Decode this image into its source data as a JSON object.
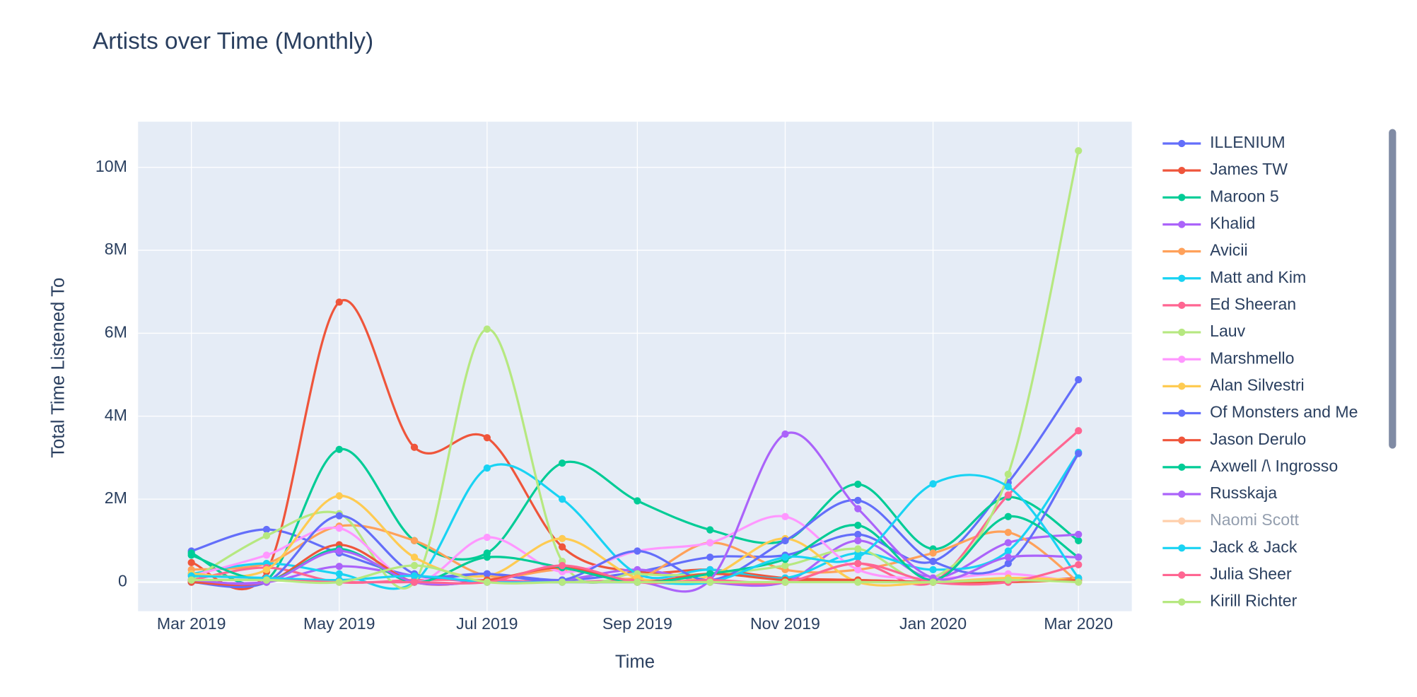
{
  "chart_data": {
    "type": "line",
    "title": "Artists over Time (Monthly)",
    "x_label": "Time",
    "y_label": "Total Time Listened To",
    "x": [
      "2019-03",
      "2019-04",
      "2019-05",
      "2019-06",
      "2019-07",
      "2019-08",
      "2019-09",
      "2019-10",
      "2019-11",
      "2019-12",
      "2020-01",
      "2020-02",
      "2020-03"
    ],
    "xlim": [
      "2019-02-07",
      "2020-03-23"
    ],
    "xticks": [
      {
        "value": "2019-03",
        "label": "Mar 2019"
      },
      {
        "value": "2019-05",
        "label": "May 2019"
      },
      {
        "value": "2019-07",
        "label": "Jul 2019"
      },
      {
        "value": "2019-09",
        "label": "Sep 2019"
      },
      {
        "value": "2019-11",
        "label": "Nov 2019"
      },
      {
        "value": "2020-01",
        "label": "Jan 2020"
      },
      {
        "value": "2020-03",
        "label": "Mar 2020"
      }
    ],
    "ylim": [
      -700000,
      11100000
    ],
    "yticks": [
      {
        "value": 0,
        "label": "0"
      },
      {
        "value": 2000000,
        "label": "2M"
      },
      {
        "value": 4000000,
        "label": "4M"
      },
      {
        "value": 6000000,
        "label": "6M"
      },
      {
        "value": 8000000,
        "label": "8M"
      },
      {
        "value": 10000000,
        "label": "10M"
      }
    ],
    "grid": true,
    "smooth": true,
    "series": [
      {
        "name": "ILLENIUM",
        "color": "#636efa",
        "values": [
          750000,
          1270000,
          700000,
          150000,
          200000,
          50000,
          250000,
          600000,
          650000,
          1150000,
          500000,
          2400000,
          4880000
        ]
      },
      {
        "name": "James TW",
        "color": "#EF553B",
        "values": [
          470000,
          250000,
          6750000,
          3250000,
          3480000,
          850000,
          250000,
          300000,
          100000,
          50000,
          0,
          0,
          100000
        ]
      },
      {
        "name": "Maroon 5",
        "color": "#00cc96",
        "values": [
          700000,
          50000,
          3200000,
          1000000,
          700000,
          2870000,
          1960000,
          1260000,
          1000000,
          2360000,
          800000,
          2050000,
          1000000
        ]
      },
      {
        "name": "Khalid",
        "color": "#ab63fa",
        "values": [
          0,
          0,
          380000,
          150000,
          0,
          50000,
          300000,
          0,
          0,
          1000000,
          100000,
          950000,
          1150000
        ]
      },
      {
        "name": "Avicii",
        "color": "#FFA15A",
        "values": [
          300000,
          450000,
          1350000,
          1000000,
          150000,
          300000,
          100000,
          950000,
          300000,
          300000,
          700000,
          1200000,
          0
        ]
      },
      {
        "name": "Matt and Kim",
        "color": "#19d3f3",
        "values": [
          200000,
          450000,
          200000,
          0,
          2750000,
          2000000,
          200000,
          300000,
          100000,
          700000,
          300000,
          750000,
          3130000
        ]
      },
      {
        "name": "Ed Sheeran",
        "color": "#FF6692",
        "values": [
          50000,
          350000,
          0,
          50000,
          50000,
          0,
          50000,
          0,
          0,
          450000,
          0,
          2100000,
          3650000
        ]
      },
      {
        "name": "Lauv",
        "color": "#B6E880",
        "values": [
          50000,
          1120000,
          1650000,
          0,
          6100000,
          500000,
          200000,
          200000,
          400000,
          800000,
          100000,
          2600000,
          10400000
        ]
      },
      {
        "name": "Marshmello",
        "color": "#FF97FF",
        "values": [
          150000,
          650000,
          1300000,
          0,
          1080000,
          250000,
          750000,
          950000,
          1580000,
          300000,
          100000,
          200000,
          0
        ]
      },
      {
        "name": "Alan Silvestri",
        "color": "#FECB52",
        "values": [
          200000,
          300000,
          2080000,
          600000,
          150000,
          1050000,
          100000,
          150000,
          1050000,
          0,
          0,
          100000,
          50000
        ]
      },
      {
        "name": "Of Monsters and Me",
        "color": "#636efa",
        "values": [
          0,
          0,
          1600000,
          200000,
          200000,
          50000,
          750000,
          50000,
          1000000,
          1970000,
          500000,
          450000,
          3100000
        ]
      },
      {
        "name": "Jason Derulo",
        "color": "#EF553B",
        "values": [
          0,
          0,
          900000,
          0,
          50000,
          350000,
          0,
          200000,
          50000,
          50000,
          0,
          0,
          50000
        ]
      },
      {
        "name": "Axwell /\\ Ingrosso",
        "color": "#00cc96",
        "values": [
          650000,
          50000,
          800000,
          0,
          600000,
          350000,
          0,
          200000,
          550000,
          1370000,
          50000,
          1580000,
          600000
        ]
      },
      {
        "name": "Russkaja",
        "color": "#ab63fa",
        "values": [
          50000,
          0,
          750000,
          0,
          0,
          0,
          0,
          50000,
          3570000,
          1770000,
          100000,
          600000,
          600000
        ]
      },
      {
        "name": "Naomi Scott",
        "color": "#FFA15A",
        "visible": "legendonly"
      },
      {
        "name": "Jack & Jack",
        "color": "#19d3f3",
        "values": [
          150000,
          100000,
          50000,
          150000,
          0,
          0,
          0,
          0,
          600000,
          600000,
          2370000,
          2300000,
          100000
        ]
      },
      {
        "name": "Julia Sheer",
        "color": "#FF6692",
        "values": [
          50000,
          50000,
          0,
          0,
          0,
          400000,
          0,
          50000,
          0,
          450000,
          0,
          0,
          420000
        ]
      },
      {
        "name": "Kirill Richter",
        "color": "#B6E880",
        "values": [
          50000,
          50000,
          0,
          400000,
          0,
          0,
          0,
          0,
          0,
          0,
          0,
          50000,
          0
        ]
      }
    ]
  }
}
